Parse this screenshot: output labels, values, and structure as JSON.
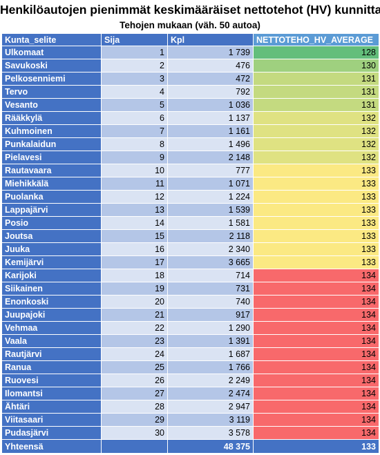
{
  "title": "Henkilöautojen pienimmät keskimääräiset nettotehot (HV) kunnittain",
  "subtitle": "Tehojen mukaan (väh. 50 autoa)",
  "columns": [
    "Kunta_selite",
    "Sija",
    "Kpl",
    "NETTOTEHO_HV_AVERAGE"
  ],
  "rows": [
    {
      "kunta": "Ulkomaat",
      "sija": "1",
      "kpl": "1 739",
      "avg": "128",
      "color": "#63be7b"
    },
    {
      "kunta": "Savukoski",
      "sija": "2",
      "kpl": "476",
      "avg": "130",
      "color": "#9fd07f"
    },
    {
      "kunta": "Pelkosenniemi",
      "sija": "3",
      "kpl": "472",
      "avg": "131",
      "color": "#c4da80"
    },
    {
      "kunta": "Tervo",
      "sija": "4",
      "kpl": "792",
      "avg": "131",
      "color": "#c4da80"
    },
    {
      "kunta": "Vesanto",
      "sija": "5",
      "kpl": "1 036",
      "avg": "131",
      "color": "#c4da80"
    },
    {
      "kunta": "Rääkkylä",
      "sija": "6",
      "kpl": "1 137",
      "avg": "132",
      "color": "#dfe282"
    },
    {
      "kunta": "Kuhmoinen",
      "sija": "7",
      "kpl": "1 161",
      "avg": "132",
      "color": "#dfe282"
    },
    {
      "kunta": "Punkalaidun",
      "sija": "8",
      "kpl": "1 496",
      "avg": "132",
      "color": "#dfe282"
    },
    {
      "kunta": "Pielavesi",
      "sija": "9",
      "kpl": "2 148",
      "avg": "132",
      "color": "#dfe282"
    },
    {
      "kunta": "Rautavaara",
      "sija": "10",
      "kpl": "777",
      "avg": "133",
      "color": "#fbe983"
    },
    {
      "kunta": "Miehikkälä",
      "sija": "11",
      "kpl": "1 071",
      "avg": "133",
      "color": "#fbe983"
    },
    {
      "kunta": "Puolanka",
      "sija": "12",
      "kpl": "1 224",
      "avg": "133",
      "color": "#fbe983"
    },
    {
      "kunta": "Lappajärvi",
      "sija": "13",
      "kpl": "1 539",
      "avg": "133",
      "color": "#fbe983"
    },
    {
      "kunta": "Posio",
      "sija": "14",
      "kpl": "1 581",
      "avg": "133",
      "color": "#fbe983"
    },
    {
      "kunta": "Joutsa",
      "sija": "15",
      "kpl": "2 118",
      "avg": "133",
      "color": "#fbe983"
    },
    {
      "kunta": "Juuka",
      "sija": "16",
      "kpl": "2 340",
      "avg": "133",
      "color": "#fbe983"
    },
    {
      "kunta": "Kemijärvi",
      "sija": "17",
      "kpl": "3 665",
      "avg": "133",
      "color": "#fbe983"
    },
    {
      "kunta": "Karijoki",
      "sija": "18",
      "kpl": "714",
      "avg": "134",
      "color": "#f8696b"
    },
    {
      "kunta": "Siikainen",
      "sija": "19",
      "kpl": "731",
      "avg": "134",
      "color": "#f8696b"
    },
    {
      "kunta": "Enonkoski",
      "sija": "20",
      "kpl": "740",
      "avg": "134",
      "color": "#f8696b"
    },
    {
      "kunta": "Juupajoki",
      "sija": "21",
      "kpl": "917",
      "avg": "134",
      "color": "#f8696b"
    },
    {
      "kunta": "Vehmaa",
      "sija": "22",
      "kpl": "1 290",
      "avg": "134",
      "color": "#f8696b"
    },
    {
      "kunta": "Vaala",
      "sija": "23",
      "kpl": "1 391",
      "avg": "134",
      "color": "#f8696b"
    },
    {
      "kunta": "Rautjärvi",
      "sija": "24",
      "kpl": "1 687",
      "avg": "134",
      "color": "#f8696b"
    },
    {
      "kunta": "Ranua",
      "sija": "25",
      "kpl": "1 766",
      "avg": "134",
      "color": "#f8696b"
    },
    {
      "kunta": "Ruovesi",
      "sija": "26",
      "kpl": "2 249",
      "avg": "134",
      "color": "#f8696b"
    },
    {
      "kunta": "Ilomantsi",
      "sija": "27",
      "kpl": "2 474",
      "avg": "134",
      "color": "#f8696b"
    },
    {
      "kunta": "Ähtäri",
      "sija": "28",
      "kpl": "2 947",
      "avg": "134",
      "color": "#f8696b"
    },
    {
      "kunta": "Viitasaari",
      "sija": "29",
      "kpl": "3 119",
      "avg": "134",
      "color": "#f8696b"
    },
    {
      "kunta": "Pudasjärvi",
      "sija": "30",
      "kpl": "3 578",
      "avg": "134",
      "color": "#f8696b"
    }
  ],
  "total": {
    "label": "Yhteensä",
    "sija": "",
    "kpl": "48 375",
    "avg": "133"
  },
  "colors": {
    "header": "#4472c4",
    "metric_header": "#5b9bd5",
    "band_odd": "#b4c6e7",
    "band_even": "#dae3f3"
  }
}
